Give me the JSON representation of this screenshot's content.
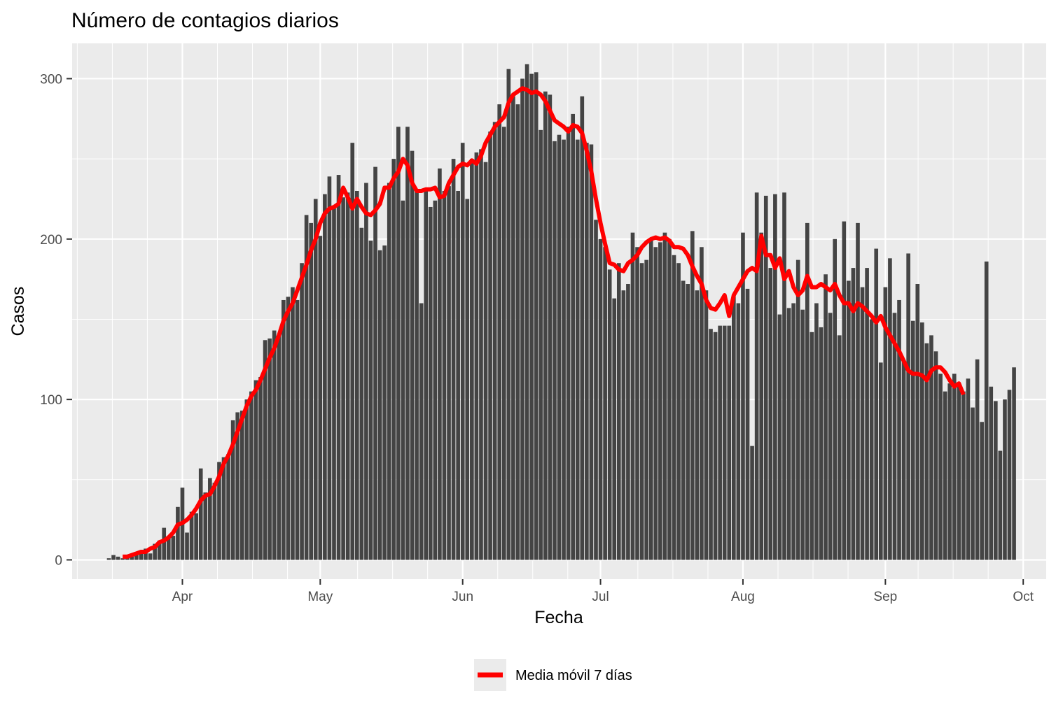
{
  "chart_data": {
    "type": "bar",
    "title": "Número de contagios diarios",
    "xlabel": "Fecha",
    "ylabel": "Casos",
    "x_start": "2020-03-16",
    "ylim": [
      -12,
      322
    ],
    "y_ticks": [
      0,
      100,
      200,
      300
    ],
    "x_ticks": [
      {
        "label": "Apr",
        "date": "2020-04-01"
      },
      {
        "label": "May",
        "date": "2020-05-01"
      },
      {
        "label": "Jun",
        "date": "2020-06-01"
      },
      {
        "label": "Jul",
        "date": "2020-07-01"
      },
      {
        "label": "Aug",
        "date": "2020-08-01"
      },
      {
        "label": "Sep",
        "date": "2020-09-01"
      },
      {
        "label": "Oct",
        "date": "2020-10-01"
      }
    ],
    "xlim": [
      "2020-03-08",
      "2020-10-06"
    ],
    "grid": true,
    "legend_position": "bottom",
    "series": [
      {
        "name": "Casos",
        "kind": "bar",
        "color": "#444444",
        "values": [
          1,
          3,
          2,
          1,
          2,
          2,
          5,
          5,
          7,
          4,
          10,
          12,
          20,
          14,
          15,
          33,
          45,
          17,
          30,
          29,
          57,
          42,
          51,
          48,
          61,
          64,
          66,
          87,
          92,
          93,
          100,
          105,
          112,
          114,
          137,
          138,
          143,
          140,
          162,
          164,
          170,
          162,
          185,
          215,
          210,
          225,
          202,
          228,
          239,
          220,
          240,
          226,
          229,
          260,
          230,
          207,
          235,
          199,
          245,
          193,
          196,
          235,
          250,
          270,
          224,
          270,
          255,
          231,
          160,
          230,
          220,
          224,
          244,
          230,
          233,
          250,
          230,
          260,
          225,
          250,
          254,
          256,
          248,
          267,
          273,
          284,
          270,
          306,
          289,
          284,
          300,
          309,
          303,
          304,
          268,
          292,
          290,
          261,
          265,
          262,
          270,
          278,
          262,
          289,
          260,
          259,
          212,
          200,
          195,
          181,
          163,
          185,
          168,
          172,
          204,
          195,
          185,
          187,
          200,
          195,
          198,
          204,
          200,
          190,
          185,
          174,
          172,
          205,
          168,
          195,
          168,
          144,
          142,
          146,
          146,
          146,
          165,
          160,
          204,
          169,
          71,
          229,
          204,
          227,
          182,
          228,
          153,
          229,
          157,
          160,
          187,
          156,
          210,
          142,
          160,
          145,
          178,
          154,
          200,
          140,
          211,
          174,
          182,
          210,
          170,
          182,
          150,
          194,
          123,
          170,
          188,
          154,
          162,
          124,
          191,
          149,
          172,
          148,
          135,
          140,
          130,
          116,
          105,
          110,
          116,
          108,
          105,
          113,
          95,
          125,
          86,
          186,
          108,
          99,
          68,
          100,
          106,
          120
        ]
      },
      {
        "name": "Media móvil 7 días",
        "kind": "line",
        "color": "#ff0000",
        "start_index": 3,
        "values": [
          2,
          2,
          3,
          4,
          5,
          5,
          7,
          8,
          11,
          12,
          14,
          17,
          22,
          23,
          25,
          28,
          32,
          37,
          40,
          41,
          46,
          52,
          60,
          65,
          72,
          80,
          88,
          96,
          102,
          106,
          112,
          119,
          126,
          132,
          140,
          149,
          155,
          160,
          168,
          176,
          184,
          193,
          200,
          210,
          216,
          219,
          220,
          222,
          232,
          226,
          219,
          225,
          220,
          216,
          215,
          218,
          222,
          232,
          232,
          238,
          242,
          250,
          246,
          235,
          230,
          230,
          231,
          231,
          232,
          226,
          227,
          235,
          240,
          245,
          247,
          246,
          249,
          247,
          252,
          260,
          265,
          270,
          273,
          276,
          285,
          290,
          292,
          294,
          293,
          291,
          292,
          290,
          286,
          280,
          274,
          272,
          270,
          267,
          271,
          270,
          266,
          255,
          242,
          225,
          210,
          197,
          185,
          184,
          181,
          180,
          185,
          187,
          190,
          195,
          198,
          200,
          201,
          200,
          201,
          199,
          195,
          195,
          194,
          190,
          183,
          177,
          172,
          162,
          157,
          156,
          160,
          165,
          152,
          165,
          170,
          175,
          180,
          182,
          180,
          202,
          190,
          190,
          182,
          188,
          175,
          180,
          170,
          165,
          168,
          177,
          170,
          170,
          172,
          170,
          168,
          172,
          165,
          160,
          160,
          155,
          160,
          158,
          155,
          152,
          148,
          152,
          145,
          140,
          135,
          130,
          124,
          118,
          116,
          116,
          115,
          112,
          118,
          120,
          120,
          117,
          112,
          108,
          110,
          103
        ]
      }
    ]
  }
}
